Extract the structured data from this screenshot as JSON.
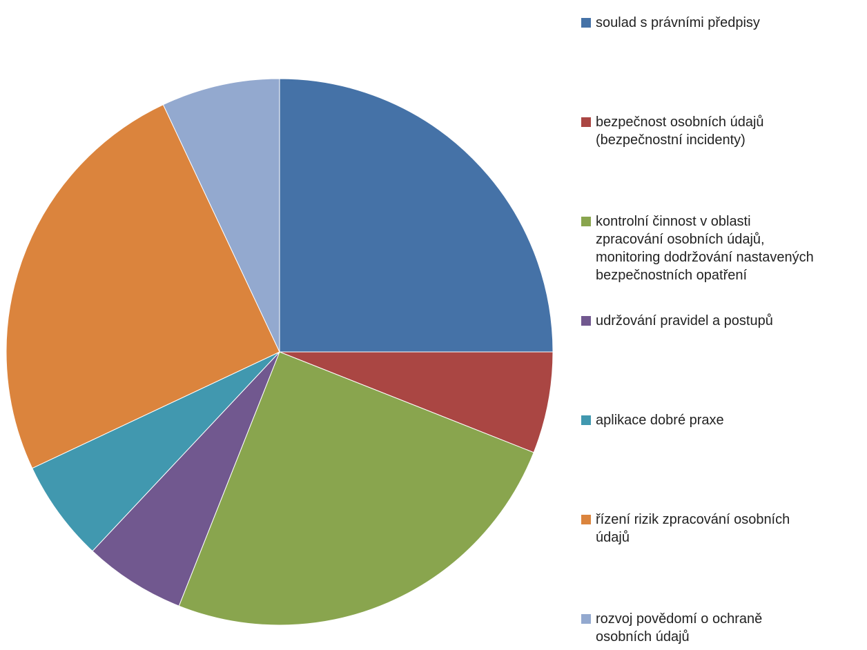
{
  "chart_data": {
    "type": "pie",
    "start_angle_deg": 0,
    "direction": "clockwise",
    "legend_position": "right",
    "slices": [
      {
        "label": "soulad s právními předpisy",
        "value": 25,
        "color": "#4572A7"
      },
      {
        "label": "bezpečnost osobních údajů\n(bezpečnostní incidenty)",
        "value": 6,
        "color": "#AA4643"
      },
      {
        "label": "kontrolní činnost v oblasti\nzpracování osobních údajů,\nmonitoring dodržování nastavených\nbezpečnostních opatření",
        "value": 25,
        "color": "#89A54E"
      },
      {
        "label": "udržování pravidel a postupů",
        "value": 6,
        "color": "#71588F"
      },
      {
        "label": "aplikace dobré praxe",
        "value": 6,
        "color": "#4198AF"
      },
      {
        "label": "řízení rizik zpracování osobních\núdajů",
        "value": 25,
        "color": "#DB843D"
      },
      {
        "label": "rozvoj povědomí o ochraně\nosobních údajů",
        "value": 7,
        "color": "#93A9CF"
      }
    ]
  }
}
